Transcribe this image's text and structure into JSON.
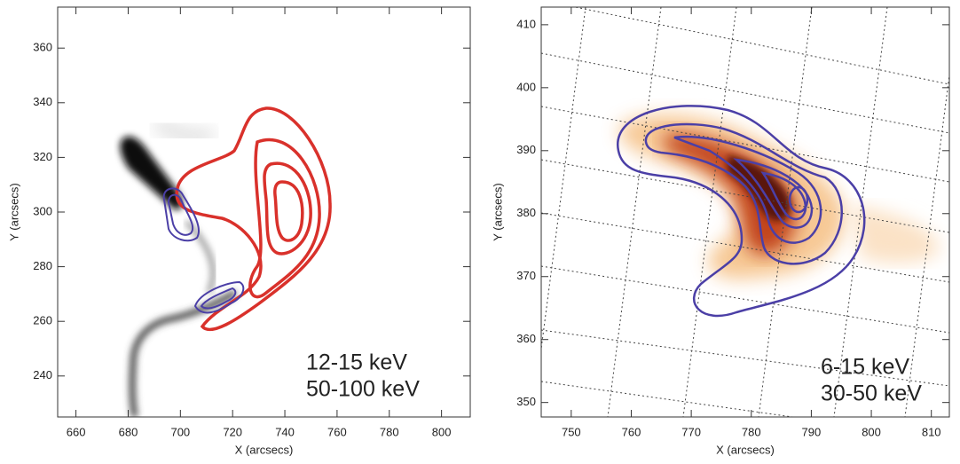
{
  "chart_data": [
    {
      "type": "image",
      "xlabel": "X (arcsecs)",
      "ylabel": "Y (arcsecs)",
      "xlim": [
        653,
        811
      ],
      "ylim": [
        225,
        375
      ],
      "xticks": [
        660,
        680,
        700,
        720,
        740,
        760,
        780,
        800
      ],
      "yticks": [
        240,
        260,
        280,
        300,
        320,
        340,
        360
      ],
      "series": [
        {
          "name": "12-15 keV",
          "color": "#d9312b"
        },
        {
          "name": "50-100 keV",
          "color": "#4b3fa6"
        }
      ]
    },
    {
      "type": "image",
      "xlabel": "X (arcsecs)",
      "ylabel": "Y (arcsecs)",
      "xlim": [
        745,
        813
      ],
      "ylim": [
        347.7,
        412.8
      ],
      "xticks": [
        750,
        760,
        770,
        780,
        790,
        800,
        810
      ],
      "yticks": [
        350,
        360,
        370,
        380,
        390,
        400,
        410
      ],
      "series": [
        {
          "name": "6-15 keV",
          "color": "#8e2416"
        },
        {
          "name": "30-50 keV",
          "color": "#4b3fa6"
        }
      ]
    }
  ]
}
